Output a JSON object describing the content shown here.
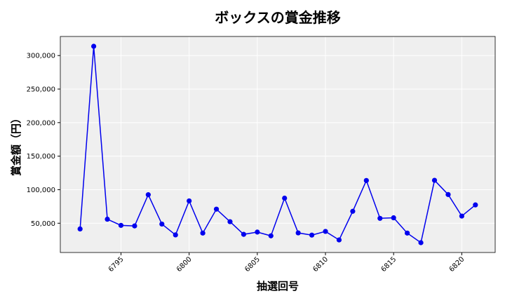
{
  "chart_data": {
    "type": "line",
    "title": "ボックスの賞金推移",
    "xlabel": "抽選回号",
    "ylabel": "賞金額（円）",
    "x": [
      6792,
      6793,
      6794,
      6795,
      6796,
      6797,
      6798,
      6799,
      6800,
      6801,
      6802,
      6803,
      6804,
      6805,
      6806,
      6807,
      6808,
      6809,
      6810,
      6811,
      6812,
      6813,
      6814,
      6815,
      6816,
      6817,
      6818,
      6819,
      6820,
      6821
    ],
    "series": [
      {
        "values": [
          41500,
          313800,
          56000,
          46800,
          46000,
          92500,
          48800,
          32600,
          83300,
          35300,
          71000,
          52300,
          33400,
          36800,
          31200,
          87400,
          35600,
          32300,
          37800,
          25100,
          67800,
          113700,
          57300,
          58100,
          35300,
          21000,
          114000,
          92800,
          60700,
          77300
        ],
        "color": "#0000ee"
      }
    ],
    "xticks": [
      "6795",
      "6800",
      "6805",
      "6810",
      "6815",
      "6820"
    ],
    "yticks": [
      "50,000",
      "100,000",
      "150,000",
      "200,000",
      "250,000",
      "300,000"
    ],
    "xlim": [
      6790.55,
      6822.45
    ],
    "ylim": [
      6360,
      328440
    ],
    "grid": true,
    "background": "#efefef"
  }
}
